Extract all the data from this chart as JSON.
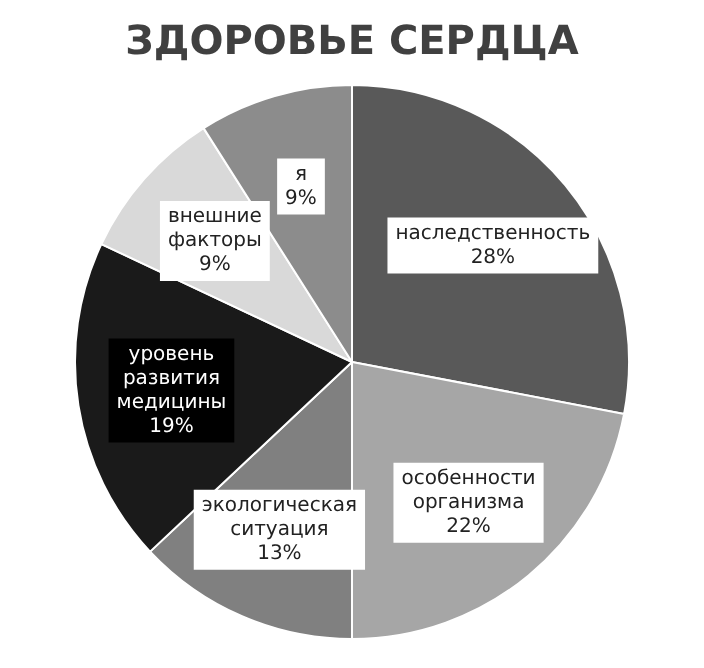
{
  "chart_data": {
    "type": "pie",
    "title": "ЗДОРОВЬЕ СЕРДЦА",
    "categories": [
      "наследственность",
      "особенности организма",
      "экологическая ситуация",
      "уровень развития медицины",
      "внешние факторы",
      "я"
    ],
    "values": [
      28,
      22,
      13,
      19,
      9,
      9
    ],
    "value_labels": [
      "28%",
      "22%",
      "13%",
      "19%",
      "9%",
      "9%"
    ],
    "colors": [
      "#595959",
      "#a6a6a6",
      "#808080",
      "#1a1a1a",
      "#d9d9d9",
      "#8c8c8c"
    ],
    "legend": false
  }
}
